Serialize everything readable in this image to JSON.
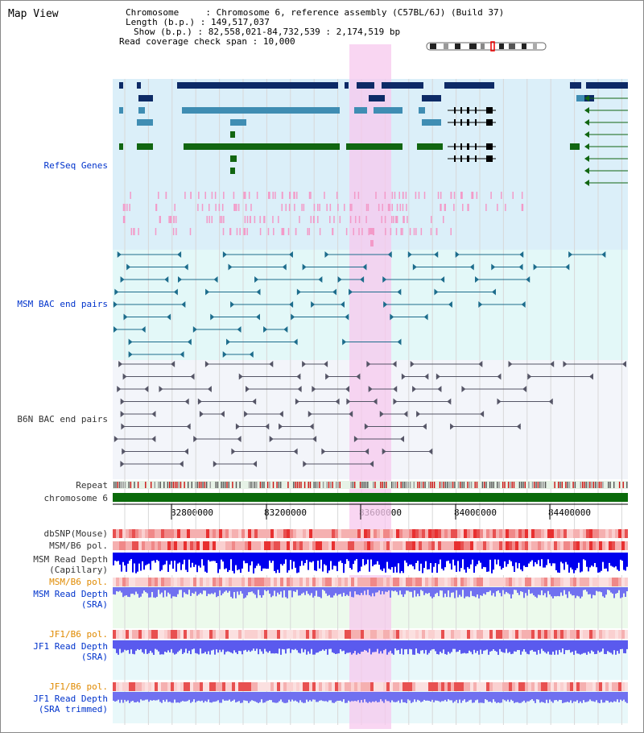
{
  "view": {
    "title": "Map View",
    "chromosome_label": "Chromosome",
    "chromosome_value": "Chromosome 6, reference assembly (C57BL/6J) (Build 37)",
    "length_label": "Length (b.p.)",
    "length_value": "149,517,037",
    "show_label": "Show (b.p.)",
    "show_value": "82,558,021-84,732,539 : 2,174,519 bp",
    "coverage_label": "Read coverage check span",
    "coverage_value": "10,000"
  },
  "tracks": {
    "refseq": "RefSeq Genes",
    "msm_bac": "MSM BAC end pairs",
    "b6n_bac": "B6N BAC end pairs",
    "repeat": "Repeat",
    "chromosome": "chromosome 6",
    "dbsnp": "dbSNP(Mouse)",
    "msm_b6_pol": "MSM/B6 pol.",
    "msm_depth_cap_1": "MSM Read Depth",
    "msm_depth_cap_2": "(Capillary)",
    "msm_b6_pol_2": "MSM/B6 pol.",
    "msm_depth_sra_1": "MSM Read Depth",
    "msm_depth_sra_2": "(SRA)",
    "jf1_b6_pol": "JF1/B6 pol.",
    "jf1_depth_sra_1": "JF1 Read Depth",
    "jf1_depth_sra_2": "(SRA)",
    "jf1_b6_pol_2": "JF1/B6 pol.",
    "jf1_depth_trim_1": "JF1 Read Depth",
    "jf1_depth_trim_2": "(SRA trimmed)"
  },
  "axis": {
    "ticks": [
      "82800000",
      "83200000",
      "83600000",
      "84000000",
      "84400000"
    ]
  },
  "colors": {
    "refseq_bg": "#dbeff9",
    "msm_bg": "#e3f8f8",
    "b6n_bg": "#f3f5fa",
    "highlight": "#f7c8ee",
    "gene_navy": "#0d2a66",
    "gene_teal": "#3f8db3",
    "gene_green": "#116611",
    "chromosome": "#0a6a0a",
    "depth_blue": "#0000ee",
    "depth_light": "#7070f0"
  }
}
